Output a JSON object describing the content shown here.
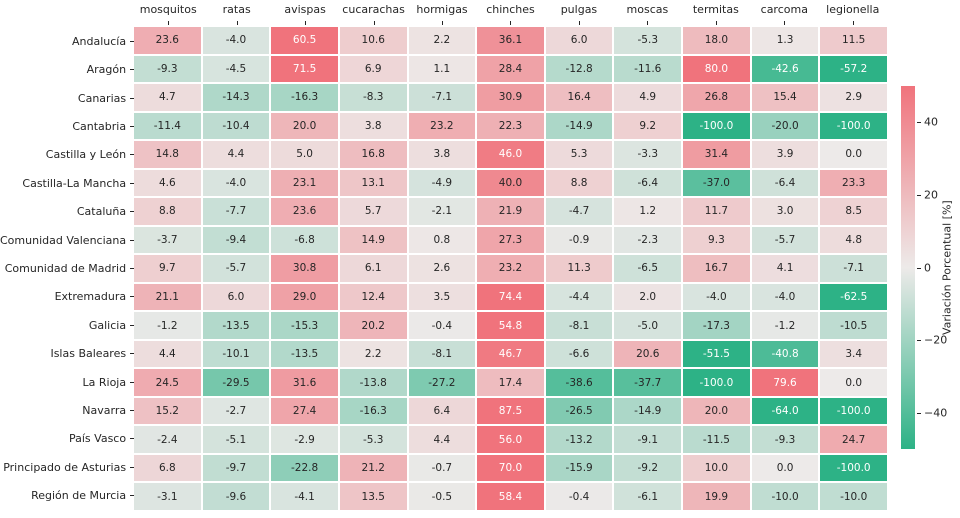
{
  "chart_data": {
    "type": "heatmap",
    "columns": [
      "mosquitos",
      "ratas",
      "avispas",
      "cucarachas",
      "hormigas",
      "chinches",
      "pulgas",
      "moscas",
      "termitas",
      "carcoma",
      "legionella"
    ],
    "rows": [
      "Andalucía",
      "Aragón",
      "Canarias",
      "Cantabria",
      "Castilla y León",
      "Castilla-La Mancha",
      "Cataluña",
      "Comunidad Valenciana",
      "Comunidad de Madrid",
      "Extremadura",
      "Galicia",
      "Islas Baleares",
      "La Rioja",
      "Navarra",
      "País Vasco",
      "Principado de Asturias",
      "Región de Murcia"
    ],
    "values": [
      [
        23.6,
        -4.0,
        60.5,
        10.6,
        2.2,
        36.1,
        6.0,
        -5.3,
        18.0,
        1.3,
        11.5
      ],
      [
        -9.3,
        -4.5,
        71.5,
        6.9,
        1.1,
        28.4,
        -12.8,
        -11.6,
        80.0,
        -42.6,
        -57.2
      ],
      [
        4.7,
        -14.3,
        -16.3,
        -8.3,
        -7.1,
        30.9,
        16.4,
        4.9,
        26.8,
        15.4,
        2.9
      ],
      [
        -11.4,
        -10.4,
        20.0,
        3.8,
        23.2,
        22.3,
        -14.9,
        9.2,
        -100.0,
        -20.0,
        -100.0
      ],
      [
        14.8,
        4.4,
        5.0,
        16.8,
        3.8,
        46.0,
        5.3,
        -3.3,
        31.4,
        3.9,
        0.0
      ],
      [
        4.6,
        -4.0,
        23.1,
        13.1,
        -4.9,
        40.0,
        8.8,
        -6.4,
        -37.0,
        -6.4,
        23.3
      ],
      [
        8.8,
        -7.7,
        23.6,
        5.7,
        -2.1,
        21.9,
        -4.7,
        1.2,
        11.7,
        3.0,
        8.5
      ],
      [
        -3.7,
        -9.4,
        -6.8,
        14.9,
        0.8,
        27.3,
        -0.9,
        -2.3,
        9.3,
        -5.7,
        4.8
      ],
      [
        9.7,
        -5.7,
        30.8,
        6.1,
        2.6,
        23.2,
        11.3,
        -6.5,
        16.7,
        4.1,
        -7.1
      ],
      [
        21.1,
        6.0,
        29.0,
        12.4,
        3.5,
        74.4,
        -4.4,
        2.0,
        -4.0,
        -4.0,
        -62.5
      ],
      [
        -1.2,
        -13.5,
        -15.3,
        20.2,
        -0.4,
        54.8,
        -8.1,
        -5.0,
        -17.3,
        -1.2,
        -10.5
      ],
      [
        4.4,
        -10.1,
        -13.5,
        2.2,
        -8.1,
        46.7,
        -6.6,
        20.6,
        -51.5,
        -40.8,
        3.4
      ],
      [
        24.5,
        -29.5,
        31.6,
        -13.8,
        -27.2,
        17.4,
        -38.6,
        -37.7,
        -100.0,
        79.6,
        0.0
      ],
      [
        15.2,
        -2.7,
        27.4,
        -16.3,
        6.4,
        87.5,
        -26.5,
        -14.9,
        20.0,
        -64.0,
        -100.0
      ],
      [
        -2.4,
        -5.1,
        -2.9,
        -5.3,
        4.4,
        56.0,
        -13.2,
        -9.1,
        -11.5,
        -9.3,
        24.7
      ],
      [
        6.8,
        -9.7,
        -22.8,
        21.2,
        -0.7,
        70.0,
        -15.9,
        -9.2,
        10.0,
        0.0,
        -100.0
      ],
      [
        -3.1,
        -9.6,
        -4.1,
        13.5,
        -0.5,
        58.4,
        -0.4,
        -6.1,
        19.9,
        -10.0,
        -10.0
      ]
    ],
    "value_format_decimals": 1,
    "colorbar": {
      "label": "Variación Porcentual [%]",
      "vmin": -50,
      "vmax": 50,
      "ticks": [
        {
          "label": "40",
          "value": 40
        },
        {
          "label": "20",
          "value": 20
        },
        {
          "label": "0",
          "value": 0
        },
        {
          "label": "−20",
          "value": -20
        },
        {
          "label": "−40",
          "value": -40
        }
      ]
    },
    "colors": {
      "positive_max": "#f0737c",
      "negative_max": "#2db286",
      "neutral": "#edeae9",
      "annotation_dark": "#262626",
      "annotation_light": "#ffffff",
      "background": "#ffffff"
    },
    "legend_position": "right",
    "grid": false
  }
}
